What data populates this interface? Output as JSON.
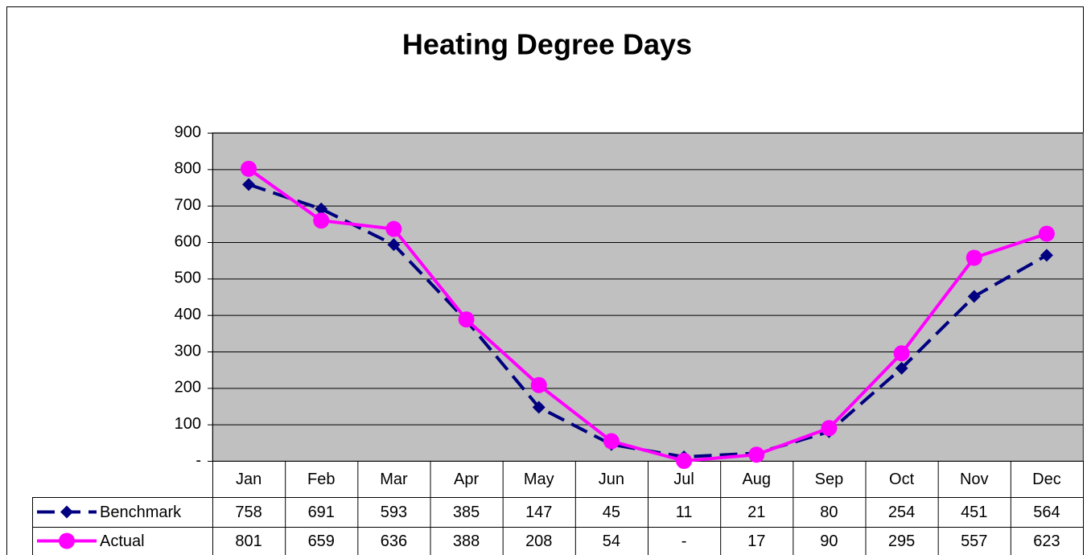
{
  "chart_data": {
    "type": "line",
    "title": "Heating Degree Days",
    "categories": [
      "Jan",
      "Feb",
      "Mar",
      "Apr",
      "May",
      "Jun",
      "Jul",
      "Aug",
      "Sep",
      "Oct",
      "Nov",
      "Dec"
    ],
    "series": [
      {
        "name": "Benchmark",
        "color": "#000080",
        "dashed": true,
        "marker": "diamond",
        "values": [
          758,
          691,
          593,
          385,
          147,
          45,
          11,
          21,
          80,
          254,
          451,
          564
        ]
      },
      {
        "name": "Actual",
        "color": "#ff00ff",
        "dashed": false,
        "marker": "circle",
        "values": [
          801,
          659,
          636,
          388,
          208,
          54,
          0,
          17,
          90,
          295,
          557,
          623
        ],
        "value_labels": [
          "801",
          "659",
          "636",
          "388",
          "208",
          "54",
          "-",
          "17",
          "90",
          "295",
          "557",
          "623"
        ]
      }
    ],
    "ylim": [
      0,
      900
    ],
    "yticks": [
      {
        "value": 0,
        "label": "-"
      },
      100,
      200,
      300,
      400,
      500,
      600,
      700,
      800,
      900
    ],
    "grid": true,
    "plot_background": "#c0c0c0",
    "data_table": true
  }
}
